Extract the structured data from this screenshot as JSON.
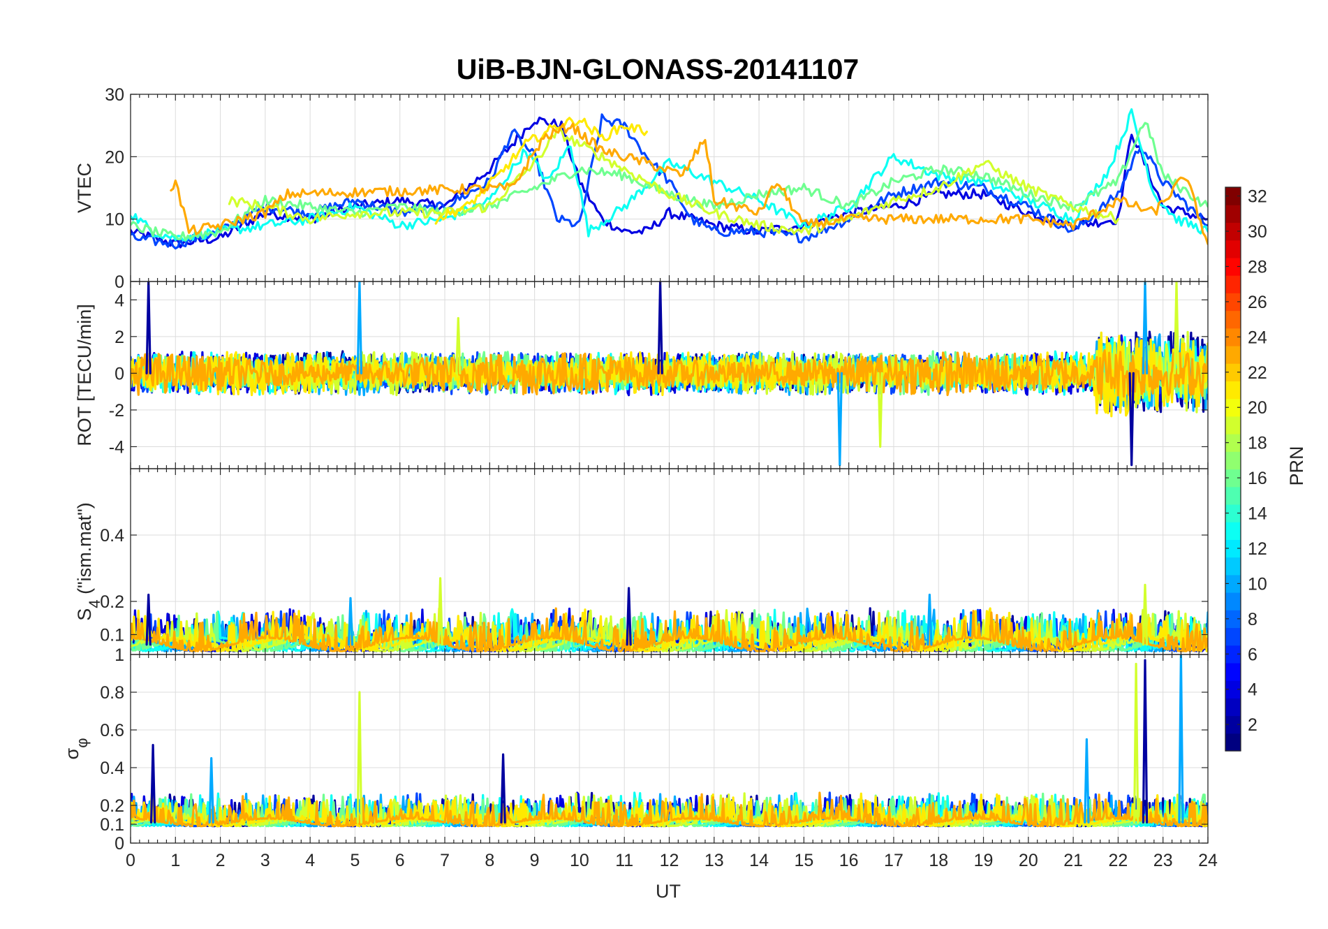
{
  "chart_data": {
    "type": "line",
    "title": "UiB-BJN-GLONASS-20141107",
    "xlabel": "UT",
    "xlim": [
      0,
      24
    ],
    "x_ticks": [
      "0",
      "1",
      "2",
      "3",
      "4",
      "5",
      "6",
      "7",
      "8",
      "9",
      "10",
      "11",
      "12",
      "13",
      "14",
      "15",
      "16",
      "17",
      "18",
      "19",
      "20",
      "21",
      "22",
      "23",
      "24"
    ],
    "panels": [
      {
        "id": "vtec",
        "ylabel": "VTEC",
        "ylim": [
          0,
          30
        ],
        "y_ticks": [
          0,
          10,
          20,
          30
        ],
        "y_tick_labels": [
          "0",
          "10",
          "20",
          "30"
        ],
        "description_series": [
          {
            "prn": 4,
            "points": [
              [
                0,
                8
              ],
              [
                1,
                6
              ],
              [
                2,
                7
              ],
              [
                3,
                11
              ],
              [
                4,
                10
              ],
              [
                5,
                12
              ],
              [
                6,
                13
              ],
              [
                7,
                12
              ],
              [
                8,
                18
              ],
              [
                9,
                26
              ],
              [
                9.6,
                25
              ],
              [
                10,
                16
              ],
              [
                10.5,
                10
              ],
              [
                11,
                8
              ],
              [
                11.5,
                8
              ],
              [
                12,
                11
              ],
              [
                13,
                9
              ],
              [
                14,
                8
              ],
              [
                15,
                9
              ],
              [
                16,
                11
              ],
              [
                17,
                12
              ],
              [
                18,
                14
              ],
              [
                19,
                14
              ],
              [
                20,
                11
              ],
              [
                21,
                9
              ],
              [
                22,
                10
              ],
              [
                22.3,
                24
              ],
              [
                22.7,
                17
              ],
              [
                23,
                12
              ],
              [
                24,
                10
              ]
            ]
          },
          {
            "prn": 7,
            "points": [
              [
                0,
                7
              ],
              [
                1,
                6
              ],
              [
                2,
                8
              ],
              [
                3,
                12
              ],
              [
                4,
                11
              ],
              [
                5,
                13
              ],
              [
                6,
                11
              ],
              [
                7,
                12
              ],
              [
                8,
                16
              ],
              [
                8.5,
                24
              ],
              [
                9,
                20
              ],
              [
                9.5,
                10
              ],
              [
                10,
                9
              ],
              [
                10.5,
                26
              ],
              [
                11,
                25
              ],
              [
                11.5,
                20
              ],
              [
                12,
                16
              ],
              [
                12.5,
                10
              ],
              [
                13,
                8
              ],
              [
                14,
                8
              ],
              [
                15,
                7
              ],
              [
                16,
                10
              ],
              [
                17,
                14
              ],
              [
                18,
                16
              ],
              [
                19,
                15
              ],
              [
                20,
                12
              ],
              [
                21,
                8
              ],
              [
                22,
                14
              ],
              [
                22.5,
                22
              ],
              [
                23,
                16
              ],
              [
                24,
                9
              ]
            ]
          },
          {
            "prn": 13,
            "points": [
              [
                0,
                11
              ],
              [
                0.5,
                8
              ],
              [
                1,
                7
              ],
              [
                2,
                8
              ],
              [
                3,
                9
              ],
              [
                4,
                10
              ],
              [
                5,
                12
              ],
              [
                6,
                9
              ],
              [
                7,
                10
              ],
              [
                8,
                13
              ],
              [
                8.8,
                21
              ],
              [
                9.3,
                16
              ],
              [
                9.8,
                22
              ],
              [
                10.2,
                8
              ],
              [
                11,
                12
              ],
              [
                12,
                19
              ],
              [
                13,
                16
              ],
              [
                14,
                13
              ],
              [
                15,
                9
              ],
              [
                16,
                12
              ],
              [
                17,
                20
              ],
              [
                18,
                17
              ],
              [
                19,
                16
              ],
              [
                20,
                13
              ],
              [
                21,
                10
              ],
              [
                21.8,
                18
              ],
              [
                22.3,
                27
              ],
              [
                22.8,
                14
              ],
              [
                23.3,
                10
              ],
              [
                24,
                8
              ]
            ]
          },
          {
            "prn": 16,
            "points": [
              [
                0,
                9
              ],
              [
                1,
                7
              ],
              [
                2,
                8
              ],
              [
                3,
                13
              ],
              [
                4,
                12
              ],
              [
                5,
                11
              ],
              [
                6,
                12
              ],
              [
                7,
                11
              ],
              [
                8,
                12
              ],
              [
                9,
                15
              ],
              [
                10,
                18
              ],
              [
                11,
                17
              ],
              [
                12,
                14
              ],
              [
                13,
                12
              ],
              [
                14,
                14
              ],
              [
                15,
                15
              ],
              [
                16,
                12
              ],
              [
                17,
                16
              ],
              [
                18,
                18
              ],
              [
                19,
                17
              ],
              [
                20,
                14
              ],
              [
                21,
                12
              ],
              [
                22,
                16
              ],
              [
                22.6,
                26
              ],
              [
                23,
                17
              ],
              [
                24,
                12
              ]
            ]
          },
          {
            "prn": 19,
            "points": [
              [
                2.2,
                13
              ],
              [
                3,
                12
              ],
              [
                4,
                10
              ],
              [
                5,
                11
              ],
              [
                6,
                11
              ],
              [
                7,
                11
              ],
              [
                8,
                12
              ],
              [
                9,
                19
              ],
              [
                9.5,
                24
              ],
              [
                10,
                22
              ],
              [
                10.5,
                20
              ],
              [
                11,
                18
              ],
              [
                12,
                14
              ],
              [
                13,
                11
              ],
              [
                14,
                9
              ],
              [
                15,
                8
              ],
              [
                16,
                10
              ],
              [
                17,
                13
              ],
              [
                18,
                15
              ],
              [
                19,
                19
              ],
              [
                20,
                15
              ],
              [
                21,
                12
              ],
              [
                22,
                10
              ]
            ]
          },
          {
            "prn": 21,
            "points": [
              [
                6.8,
                10
              ],
              [
                7.5,
                12
              ],
              [
                8.2,
                17
              ],
              [
                8.8,
                22
              ],
              [
                9.5,
                25
              ],
              [
                10,
                26
              ],
              [
                10.5,
                23
              ],
              [
                11,
                25
              ],
              [
                11.5,
                24
              ]
            ]
          },
          {
            "prn": 23,
            "points": [
              [
                0.9,
                15
              ],
              [
                1,
                16
              ],
              [
                1.3,
                8
              ],
              [
                2,
                9
              ],
              [
                3,
                11
              ],
              [
                3.5,
                14
              ],
              [
                8.5,
                15
              ],
              [
                9.2,
                23
              ],
              [
                9.8,
                25
              ],
              [
                10.5,
                21
              ],
              [
                11.5,
                19
              ],
              [
                12.3,
                17
              ],
              [
                12.8,
                23
              ],
              [
                13,
                13
              ],
              [
                14,
                11
              ],
              [
                14.4,
                16
              ],
              [
                15,
                9
              ],
              [
                16,
                10
              ],
              [
                20,
                10
              ],
              [
                21,
                9
              ],
              [
                22,
                13
              ],
              [
                22.8,
                11
              ],
              [
                23.5,
                17
              ],
              [
                24,
                6
              ]
            ]
          }
        ]
      },
      {
        "id": "rot",
        "ylabel": "ROT [TECU/min]",
        "ylim": [
          -5.2,
          5
        ],
        "y_ticks": [
          -4,
          -2,
          0,
          2,
          4
        ],
        "y_tick_labels": [
          "-4",
          "-2",
          "0",
          "2",
          "4"
        ],
        "typical_amplitude": 1.0,
        "notable_spikes": [
          [
            0.4,
            5
          ],
          [
            5.1,
            5
          ],
          [
            7.3,
            3
          ],
          [
            11.8,
            5
          ],
          [
            15.8,
            -5
          ],
          [
            16.7,
            -4
          ],
          [
            22.3,
            -5
          ],
          [
            22.6,
            5
          ],
          [
            23.3,
            5
          ]
        ]
      },
      {
        "id": "s4",
        "ylabel": "S4 (\"ism.mat\")",
        "ylabel_main": "S",
        "ylabel_sub": "4",
        "ylabel_rest": " (\"ism.mat\")",
        "ylim": [
          0.04,
          0.6
        ],
        "y_ticks": [
          0.1,
          0.2,
          0.4
        ],
        "y_tick_labels": [
          "0.1",
          "0.2",
          "0.4"
        ],
        "extra_bottom_tick_label": "1",
        "baseline": 0.07,
        "notable_peaks": [
          [
            0.4,
            0.22
          ],
          [
            4.9,
            0.21
          ],
          [
            6.9,
            0.27
          ],
          [
            11.1,
            0.24
          ],
          [
            17.8,
            0.22
          ],
          [
            22.6,
            0.25
          ]
        ]
      },
      {
        "id": "sigma_phi",
        "ylabel": "σ_φ",
        "ylabel_main": "σ",
        "ylabel_sub": "φ",
        "ylim": [
          0,
          1
        ],
        "y_ticks": [
          0,
          0.1,
          0.2,
          0.4,
          0.6,
          0.8
        ],
        "y_tick_labels": [
          "0",
          "0.1",
          "0.2",
          "0.4",
          "0.6",
          "0.8"
        ],
        "baseline": 0.11,
        "notable_peaks": [
          [
            0.5,
            0.52
          ],
          [
            1.8,
            0.45
          ],
          [
            5.1,
            0.8
          ],
          [
            8.3,
            0.47
          ],
          [
            21.3,
            0.55
          ],
          [
            22.4,
            0.95
          ],
          [
            22.6,
            0.97
          ],
          [
            23.4,
            1.0
          ]
        ]
      }
    ],
    "colorbar": {
      "label": "PRN",
      "colormap": "jet",
      "range": [
        1,
        32
      ],
      "tick_labels": [
        "2",
        "4",
        "6",
        "8",
        "10",
        "12",
        "14",
        "16",
        "18",
        "20",
        "22",
        "24",
        "26",
        "28",
        "30",
        "32"
      ]
    }
  },
  "colors": {
    "grid": "#dcdcdc",
    "axis": "#262626"
  }
}
